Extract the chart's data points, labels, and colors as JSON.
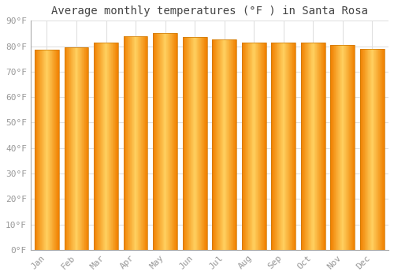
{
  "title": "Average monthly temperatures (°F ) in Santa Rosa",
  "months": [
    "Jan",
    "Feb",
    "Mar",
    "Apr",
    "May",
    "Jun",
    "Jul",
    "Aug",
    "Sep",
    "Oct",
    "Nov",
    "Dec"
  ],
  "values": [
    78.5,
    79.5,
    81.5,
    84.0,
    85.0,
    83.5,
    82.5,
    81.5,
    81.5,
    81.5,
    80.5,
    79.0
  ],
  "bar_color_center": "#FFBB33",
  "bar_color_edge": "#F08000",
  "background_color": "#FFFFFF",
  "plot_bg_color": "#FFFFFF",
  "grid_color": "#E0E0E0",
  "text_color": "#999999",
  "title_color": "#444444",
  "ylim": [
    0,
    90
  ],
  "yticks": [
    0,
    10,
    20,
    30,
    40,
    50,
    60,
    70,
    80,
    90
  ],
  "title_fontsize": 10,
  "tick_fontsize": 8,
  "bar_width": 0.82
}
